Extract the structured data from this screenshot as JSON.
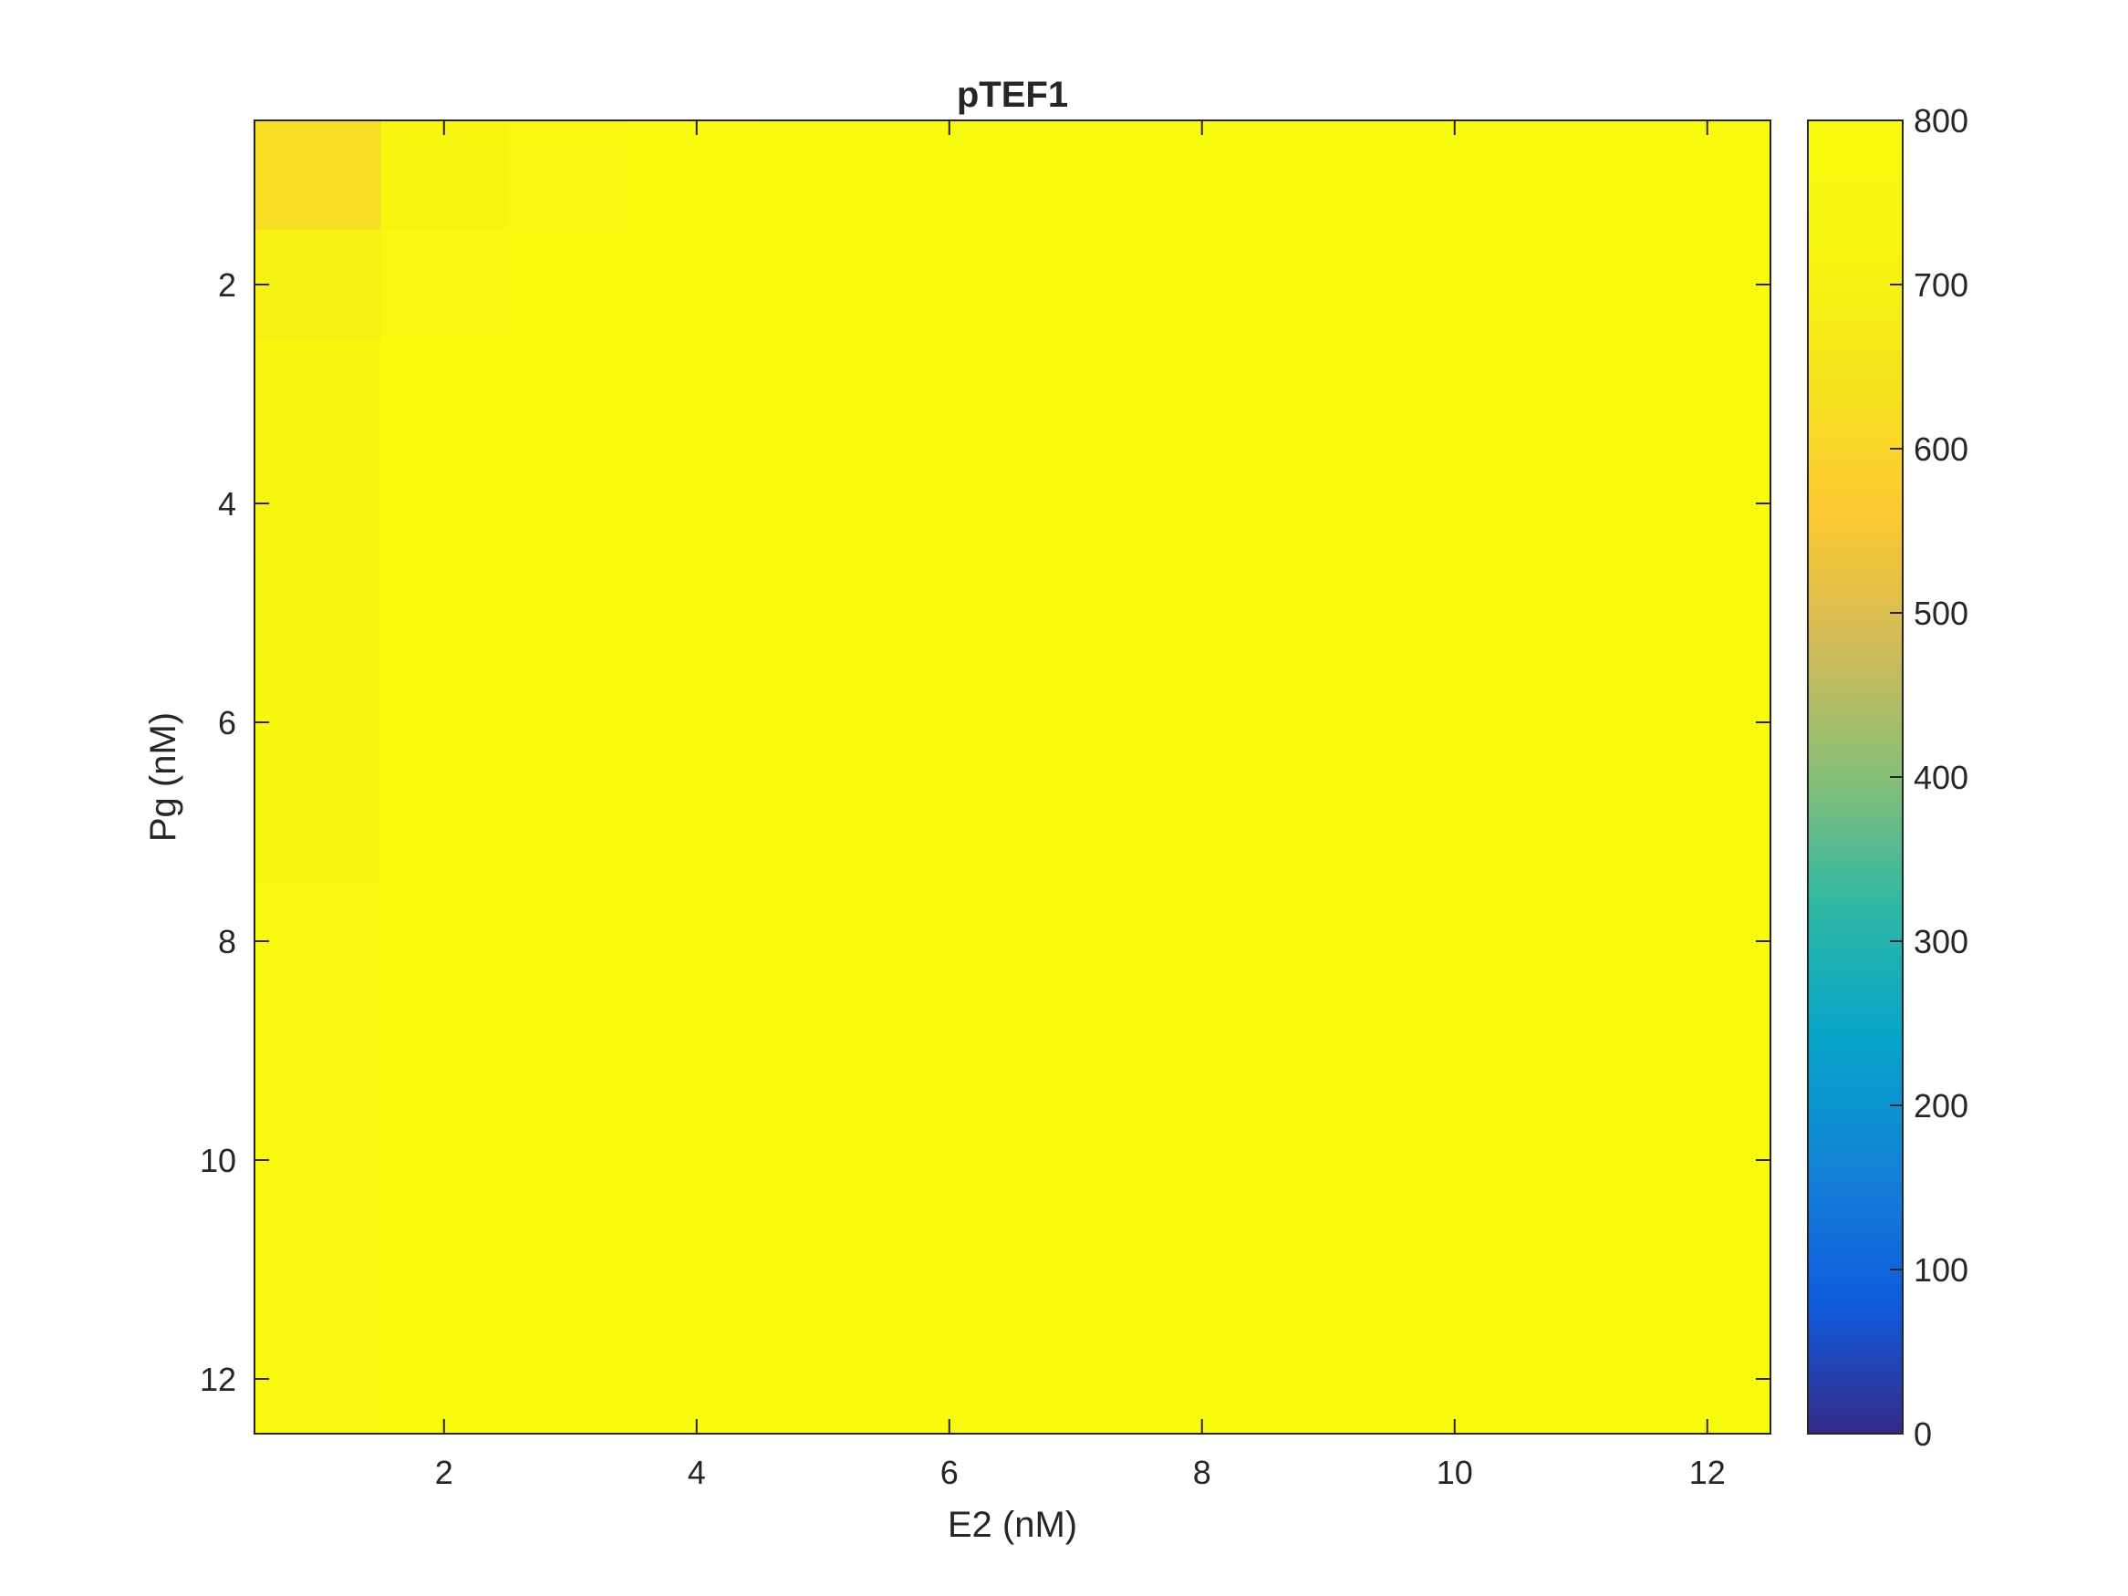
{
  "chart_data": {
    "type": "heatmap",
    "title": "pTEF1",
    "xlabel": "E2 (nM)",
    "ylabel": "Pg (nM)",
    "x": [
      1,
      2,
      3,
      4,
      5,
      6,
      7,
      8,
      9,
      10,
      11,
      12
    ],
    "y": [
      1,
      2,
      3,
      4,
      5,
      6,
      7,
      8,
      9,
      10,
      11,
      12
    ],
    "x_ticks": [
      2,
      4,
      6,
      8,
      10,
      12
    ],
    "y_ticks": [
      2,
      4,
      6,
      8,
      10,
      12
    ],
    "y_direction": "reverse",
    "colorbar": {
      "range": [
        0,
        800
      ],
      "ticks": [
        0,
        100,
        200,
        300,
        400,
        500,
        600,
        700,
        800
      ],
      "colormap": "parula",
      "placement": "right"
    },
    "values": [
      [
        625,
        730,
        765,
        785,
        795,
        795,
        795,
        795,
        795,
        795,
        795,
        795
      ],
      [
        700,
        760,
        780,
        795,
        795,
        795,
        795,
        795,
        795,
        795,
        795,
        795
      ],
      [
        720,
        770,
        795,
        795,
        795,
        795,
        795,
        795,
        795,
        795,
        795,
        795
      ],
      [
        735,
        775,
        795,
        795,
        795,
        795,
        795,
        795,
        795,
        795,
        795,
        795
      ],
      [
        745,
        778,
        795,
        795,
        795,
        795,
        795,
        795,
        795,
        795,
        795,
        795
      ],
      [
        755,
        785,
        795,
        795,
        795,
        795,
        795,
        795,
        795,
        795,
        795,
        795
      ],
      [
        758,
        785,
        795,
        795,
        795,
        795,
        795,
        795,
        795,
        795,
        795,
        795
      ],
      [
        760,
        787,
        795,
        795,
        795,
        795,
        795,
        795,
        795,
        795,
        795,
        795
      ],
      [
        762,
        795,
        795,
        795,
        795,
        795,
        795,
        795,
        795,
        795,
        795,
        795
      ],
      [
        762,
        795,
        795,
        795,
        795,
        795,
        795,
        795,
        795,
        795,
        795,
        795
      ],
      [
        765,
        795,
        795,
        795,
        795,
        795,
        795,
        795,
        795,
        795,
        795,
        795
      ],
      [
        765,
        795,
        795,
        795,
        795,
        795,
        795,
        795,
        795,
        795,
        795,
        795
      ]
    ]
  }
}
